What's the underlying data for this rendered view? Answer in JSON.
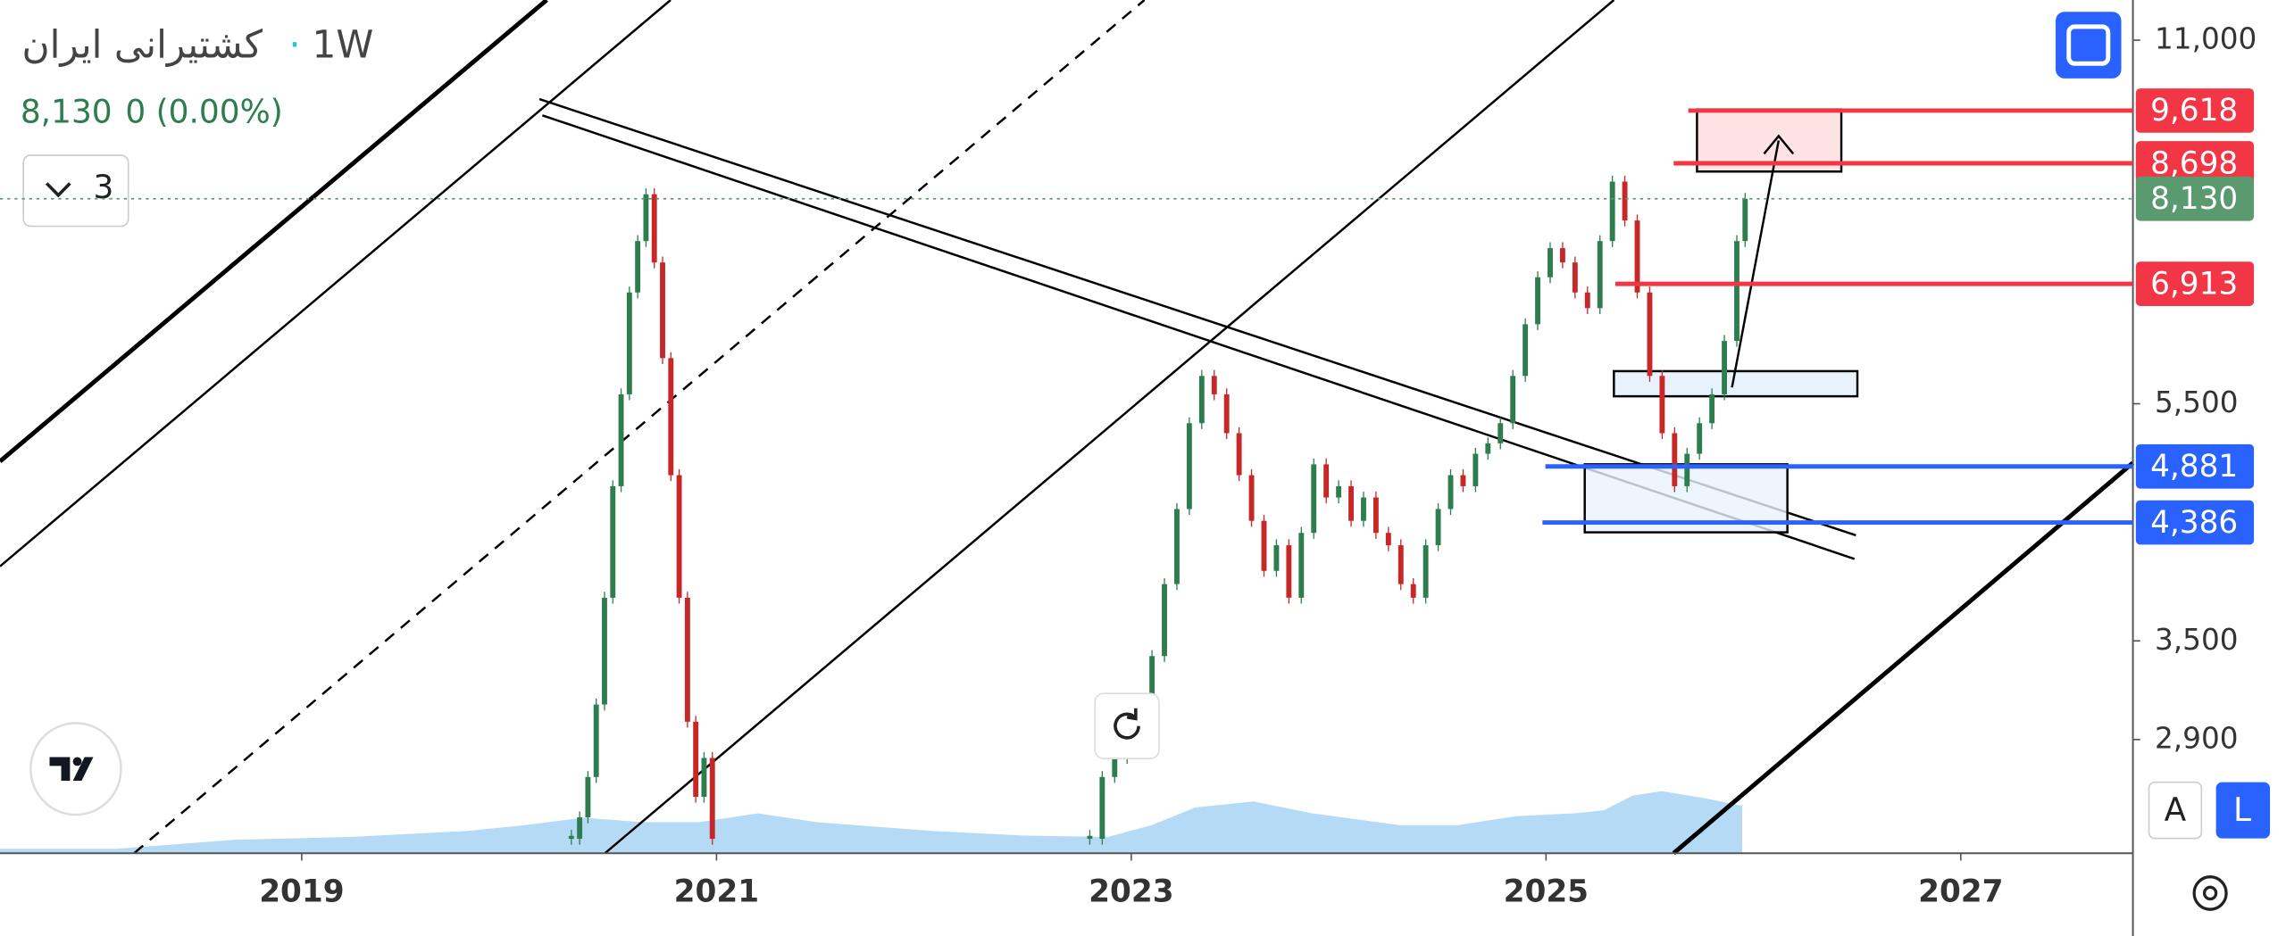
{
  "header": {
    "symbol": "کشتیرانی ایران",
    "interval": "1W",
    "price": "8,130",
    "change": "0 (0.00%)",
    "indicators": "3"
  },
  "axis_buttons": [
    "A",
    "L"
  ],
  "chart_data": {
    "type": "candlestick",
    "log_scale": true,
    "x": [
      2020.3,
      2020.34,
      2020.38,
      2020.42,
      2020.46,
      2020.5,
      2020.54,
      2020.58,
      2020.62,
      2020.66,
      2020.7,
      2020.74,
      2020.78,
      2020.82,
      2020.86,
      2020.9,
      2020.94,
      2020.98,
      2021.1,
      2022.8,
      2022.86,
      2022.92,
      2022.98,
      2023.04,
      2023.1,
      2023.16,
      2023.22,
      2023.28,
      2023.34,
      2023.4,
      2023.46,
      2023.52,
      2023.58,
      2023.64,
      2023.7,
      2023.76,
      2023.82,
      2023.88,
      2023.94,
      2024.0,
      2024.06,
      2024.12,
      2024.18,
      2024.24,
      2024.3,
      2024.36,
      2024.42,
      2024.48,
      2024.54,
      2024.6,
      2024.66,
      2024.72,
      2024.78,
      2024.84,
      2024.9,
      2024.96,
      2025.02,
      2025.08,
      2025.14,
      2025.2,
      2025.26,
      2025.32,
      2025.38,
      2025.44,
      2025.5,
      2025.56,
      2025.62,
      2025.68,
      2025.74,
      2025.8,
      2025.86,
      2025.92,
      2025.96
    ],
    "values": [
      2400,
      2500,
      2700,
      3100,
      3800,
      4700,
      5600,
      6800,
      7500,
      8200,
      7200,
      6000,
      4800,
      3800,
      3000,
      2600,
      2800,
      2400,
      null,
      2400,
      2700,
      2800,
      2900,
      3000,
      3400,
      3900,
      4500,
      5300,
      5800,
      5600,
      5200,
      4800,
      4400,
      4000,
      4200,
      3800,
      4300,
      4900,
      4600,
      4700,
      4400,
      4600,
      4300,
      4200,
      3900,
      3800,
      4200,
      4500,
      4800,
      4700,
      5000,
      5100,
      5300,
      5800,
      6400,
      7000,
      7400,
      7200,
      6800,
      6600,
      7500,
      8400,
      7800,
      6800,
      5800,
      5200,
      4700,
      5000,
      5300,
      5600,
      6200,
      7500,
      8130
    ],
    "up_color": "#2e7d4f",
    "down_color": "#c62828",
    "xlim": [
      2017.545,
      2027.83
    ],
    "xticks": [
      2019,
      2021,
      2023,
      2025,
      2027
    ],
    "ylim": [
      2335,
      11875
    ],
    "yticks": [
      {
        "value": 11000,
        "label": "11,000"
      },
      {
        "value": 5500,
        "label": "5,500"
      },
      {
        "value": 3500,
        "label": "3,500"
      },
      {
        "value": 2900,
        "label": "2,900"
      }
    ],
    "levels": [
      {
        "value": 9618,
        "label": "9,618",
        "color": "#f23645"
      },
      {
        "value": 8698,
        "label": "8,698",
        "color": "#f23645"
      },
      {
        "value": 8130,
        "label": "8,130",
        "color": "#5a9a6e"
      },
      {
        "value": 6913,
        "label": "6,913",
        "color": "#f23645"
      },
      {
        "value": 4881,
        "label": "4,881",
        "color": "#2962ff"
      },
      {
        "value": 4386,
        "label": "4,386",
        "color": "#2962ff"
      }
    ]
  }
}
